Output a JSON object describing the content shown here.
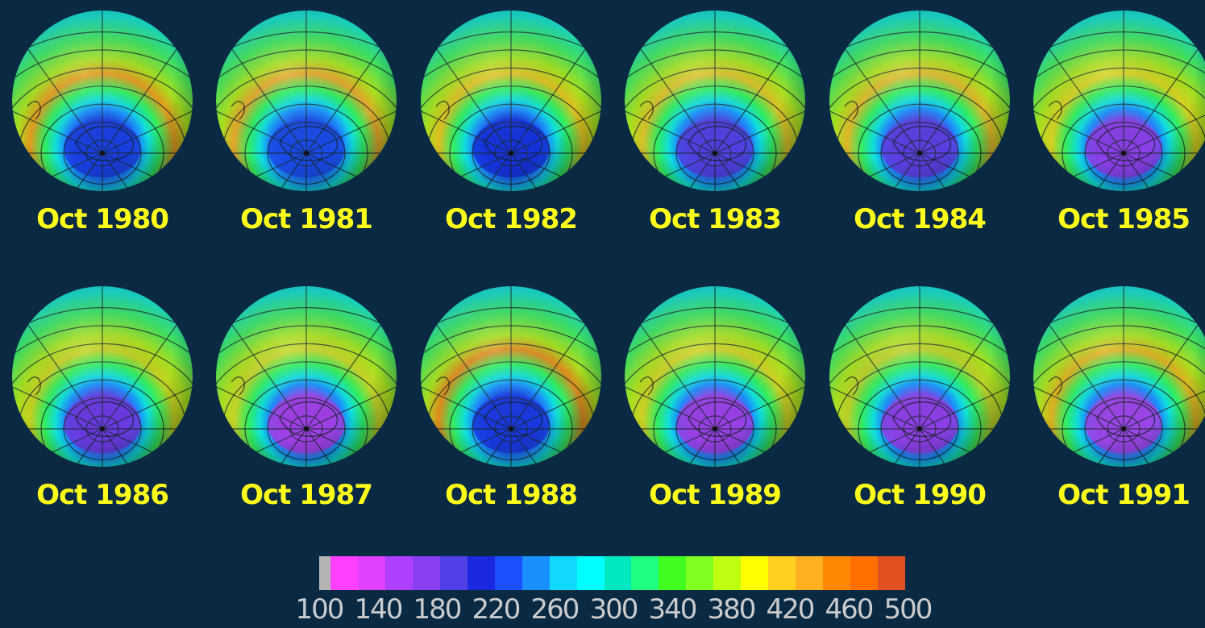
{
  "panels": [
    {
      "label": "Oct 1980",
      "min_ozone": 220,
      "hole_color": "#1a3ee0",
      "collar_color": "#e59a1e"
    },
    {
      "label": "Oct 1981",
      "min_ozone": 230,
      "hole_color": "#1a4ae6",
      "collar_color": "#e6a52a"
    },
    {
      "label": "Oct 1982",
      "min_ozone": 215,
      "hole_color": "#1432dc",
      "collar_color": "#e0c020"
    },
    {
      "label": "Oct 1983",
      "min_ozone": 190,
      "hole_color": "#5040e0",
      "collar_color": "#dcc028"
    },
    {
      "label": "Oct 1984",
      "min_ozone": 185,
      "hole_color": "#5a3ee0",
      "collar_color": "#e0b82a"
    },
    {
      "label": "Oct 1985",
      "min_ozone": 170,
      "hole_color": "#8a3ee6",
      "collar_color": "#d8d020"
    },
    {
      "label": "Oct 1986",
      "min_ozone": 185,
      "hole_color": "#6a3ae0",
      "collar_color": "#c6d020"
    },
    {
      "label": "Oct 1987",
      "min_ozone": 150,
      "hole_color": "#a040e6",
      "collar_color": "#c8d428"
    },
    {
      "label": "Oct 1988",
      "min_ozone": 220,
      "hole_color": "#1a38e0",
      "collar_color": "#e08a1e"
    },
    {
      "label": "Oct 1989",
      "min_ozone": 160,
      "hole_color": "#9a40e6",
      "collar_color": "#d0d024"
    },
    {
      "label": "Oct 1990",
      "min_ozone": 165,
      "hole_color": "#8e3ee6",
      "collar_color": "#bcd028"
    },
    {
      "label": "Oct 1991",
      "min_ozone": 155,
      "hole_color": "#9c44e8",
      "collar_color": "#e0b020"
    }
  ],
  "colorbar": {
    "ticks": [
      "100",
      "140",
      "180",
      "220",
      "260",
      "300",
      "340",
      "380",
      "420",
      "460",
      "500"
    ],
    "colors": [
      "#b4b4b4",
      "#ff40ff",
      "#e040ff",
      "#b040ff",
      "#8a40f0",
      "#5040e6",
      "#1a28e0",
      "#1a50ff",
      "#1a90ff",
      "#10d8ff",
      "#00ffff",
      "#00e8c0",
      "#20ff80",
      "#40ff20",
      "#80ff20",
      "#c0ff10",
      "#ffff00",
      "#ffd020",
      "#ffb020",
      "#ff8800",
      "#ff7000",
      "#e05020"
    ]
  },
  "colors": {
    "background": "#0a2a44",
    "label": "#ffff1a",
    "ocean_base": "#20c8a0",
    "gridline": "#1a2a2a"
  }
}
